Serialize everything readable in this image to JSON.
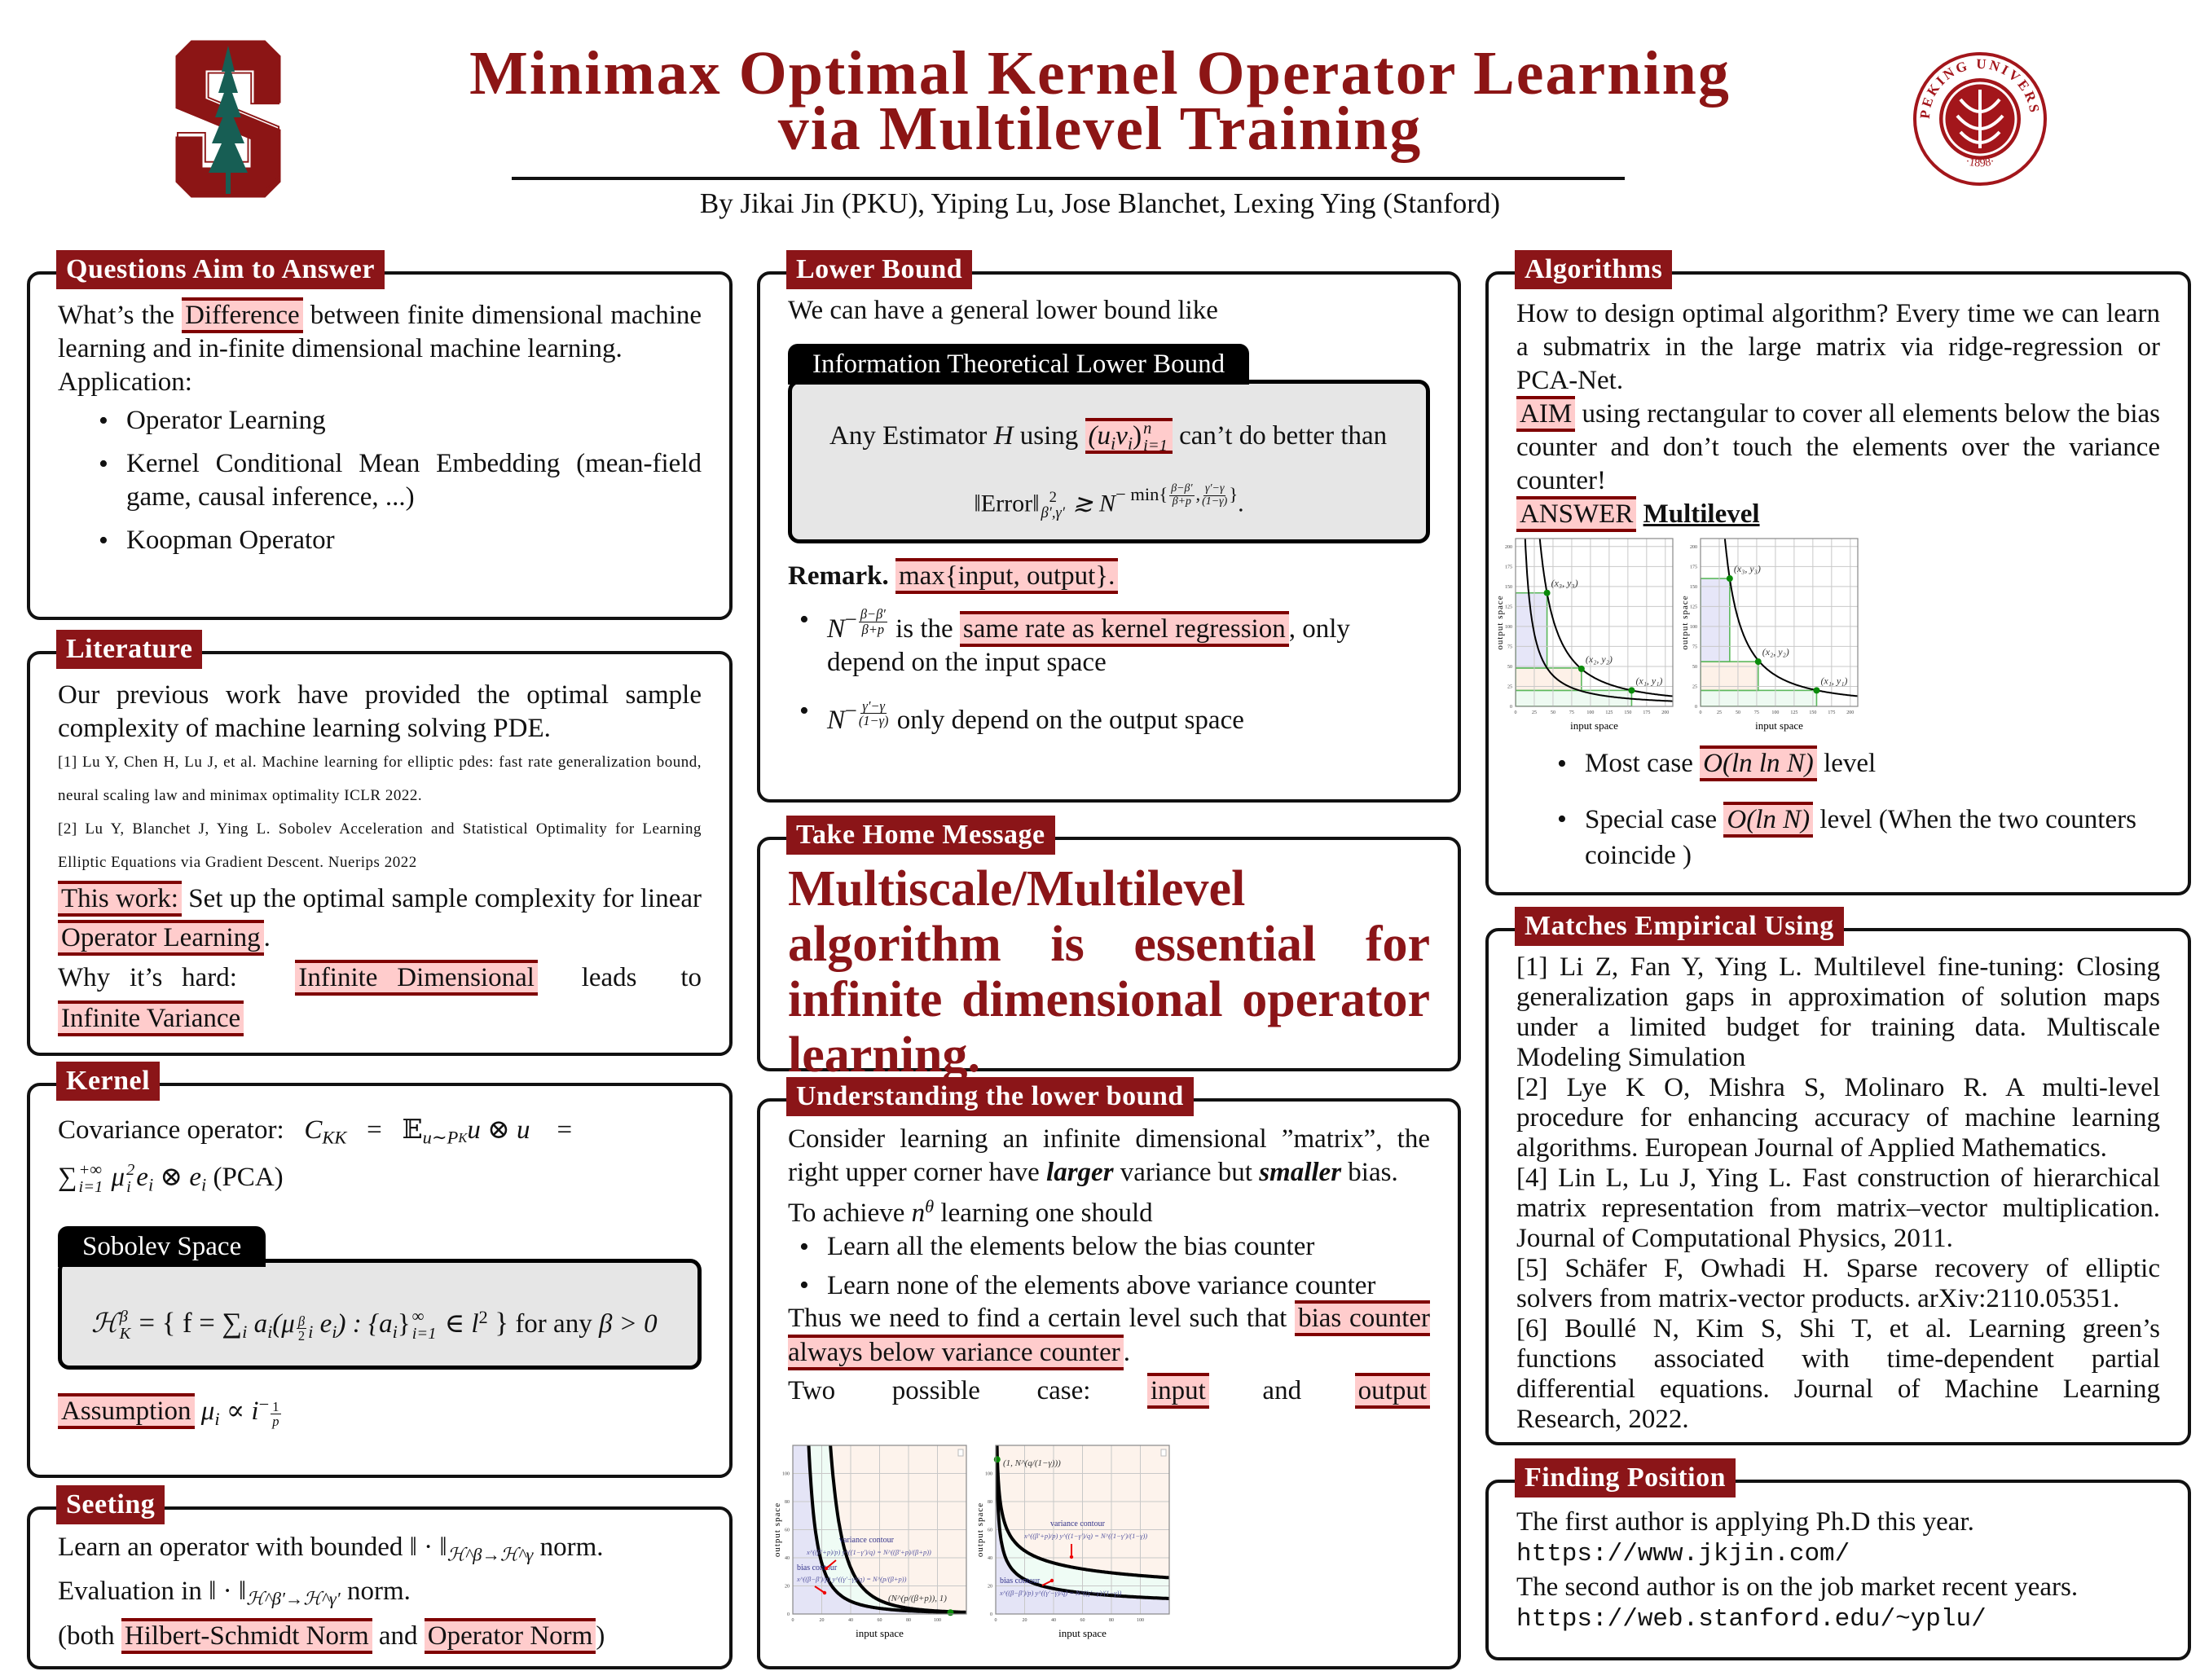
{
  "header": {
    "title_line1": "Minimax Optimal Kernel Operator Learning",
    "title_line2": "via Multilevel Training",
    "authors": "By Jikai Jin (PKU), Yiping Lu, Jose Blanchet, Lexing Ying (Stanford)",
    "left_logo": "Stanford S",
    "seal_text": "PEKING UNIVERSITY",
    "seal_year": "·1898·"
  },
  "questions": {
    "title": "Questions Aim to Answer",
    "p1_a": "What’s the ",
    "p1_hl": "Difference",
    "p1_b": " between finite dimensional machine learning and in-finite dimensional machine learning.",
    "application": "Application:",
    "items": [
      "Operator Learning",
      "Kernel Conditional Mean Embedding (mean-field game, causal inference, ...)",
      "Koopman Operator"
    ]
  },
  "literature": {
    "title": "Literature",
    "p1": "Our previous work have provided the optimal sample complexity of machine learning solving PDE.",
    "ref1": "[1] Lu Y, Chen H, Lu J, et al.  Machine learning for elliptic pdes: fast rate generalization bound, neural scaling law and minimax optimality ICLR 2022.",
    "ref2": "[2] Lu Y, Blanchet J, Ying L. Sobolev Acceleration and Statistical Optimality for Learning Elliptic Equations via Gradient Descent. Nuerips 2022",
    "this_work": "This work:",
    "this_work_text": " Set up the optimal sample complexity for linear ",
    "op_learning": "Operator Learning",
    "dot": ".",
    "why": "Why it’s hard: ",
    "inf_dim": "Infinite Dimensional",
    "leads": " leads to ",
    "inf_var": "Infinite Variance"
  },
  "kernel": {
    "title": "Kernel",
    "cov_label": "Covariance operator: ",
    "C": "C",
    "KK": "KK",
    "eq": " = ",
    "E": "𝔼",
    "E_sub": "u∼P",
    "E_subsub": "K",
    "uu": "u ⊗ u",
    "eq2": " = ",
    "sum": "∑",
    "sum_sub": "i=1",
    "sum_sup": "+∞",
    "mu": "μ",
    "mu_sub": "i",
    "mu_sup": "2",
    "ee": "e",
    "ee_sub": "i",
    "otimes": " ⊗ ",
    "e2": "e",
    "e2_sub": "i",
    "pca": " (PCA)",
    "sobolev_title": "Sobolev Space",
    "H": "ℋ",
    "H_sup": "β",
    "H_sub": "K",
    "set_a": " = { f = ∑",
    "set_i": "i",
    "set_b": " a",
    "set_ai": "i",
    "set_c": "(μ",
    "set_mui": "i",
    "set_beta": "β",
    "set_two": "2",
    "set_d": " e",
    "set_ei": "i",
    "set_e": ") : {a",
    "set_ai2": "i",
    "set_f": "}",
    "set_inf": "∞",
    "set_i1": "i=1",
    "set_g": " ∈ l",
    "set_l2": "2",
    "set_h": " }",
    "for_any": " for any ",
    "beta_gt": "β > 0",
    "assumption": "Assumption",
    "assumption_math": " μ",
    "assumption_i": "i",
    "assumption_prop": " ∝ i",
    "assumption_exp": "−",
    "assumption_num": "1",
    "assumption_den": "p"
  },
  "seeting": {
    "title": "Seeting",
    "l1_a": "Learn an operator with bounded ‖ · ‖",
    "l1_sub": "ℋ^β→ℋ^γ",
    "l1_b": " norm.",
    "l2_a": "Evaluation in ‖ · ‖",
    "l2_sub": "ℋ^β′→ℋ^γ′",
    "l2_b": " norm.",
    "l3_a": "(both ",
    "hs": "Hilbert-Schmidt Norm",
    "and": " and ",
    "op": "Operator Norm",
    "close": ")"
  },
  "lower_bound": {
    "title": "Lower Bound",
    "intro": "We can have a general lower bound like",
    "box_title": "Information Theoretical Lower Bound",
    "any": "Any Estimator ",
    "H": "H",
    "using": " using ",
    "pairs": "(u",
    "pairs_i": "i",
    ", ": ", ",
    "pairs_v": "v",
    "pairs_vi": "i",
    "pairs_close": ")",
    "pairs_sup": "n",
    "pairs_sub": "i=1",
    "cant": " can’t do better than",
    "err": "‖Error‖",
    "err_sup": "2",
    "err_sub": "β′,γ′",
    "gtrsim": " ≳ N",
    "min": "− min{",
    "f1n": "β−β′",
    "f1d": "β+p",
    "comma": ",",
    "f2n": "γ′−γ",
    "f2d": "(1−γ)",
    "minclose": "}",
    "period": ".",
    "remark": "Remark.",
    "remark_hl": "max{input, output}.",
    "b1_N": "N",
    "b1_minus": "−",
    "b1_n": "β−β′",
    "b1_d": "β+p",
    "b1_is": " is the ",
    "b1_hl": "same rate as kernel regression",
    "b1_rest": ", only depend on the input space",
    "b2_N": "N",
    "b2_minus": "−",
    "b2_n": "γ′−γ",
    "b2_d": "(1−γ)",
    "b2_rest": " only depend on the output space"
  },
  "take_home": {
    "title": "Take Home Message",
    "text": "Multiscale/Multilevel algorithm is essential for infinite dimensional operator learning."
  },
  "understanding": {
    "title": "Understanding the lower bound",
    "p1_a": "Consider learning an infinite dimensional ”matrix”, the right upper corner have ",
    "larger": "larger",
    "p1_b": " variance but ",
    "smaller": "smaller",
    "p1_c": " bias.",
    "p2_a": "To achieve ",
    "n": "n",
    "theta": "θ",
    "p2_b": " learning one should",
    "bullets": [
      "Learn all the elements below the bias counter",
      "Learn none of the elements above variance counter"
    ],
    "p3": "Thus we need to find a certain level such that ",
    "p3_hl": "bias counter always below variance counter",
    "p3_dot": ".",
    "p4": "Two possible case: ",
    "input": "input",
    "and": " and ",
    "output": "output",
    "plots": [
      {
        "xlabel": "input space",
        "ylabel": "output space",
        "xticks": [
          "0",
          "20",
          "40",
          "60",
          "80",
          "100"
        ],
        "yticks": [
          "0",
          "20",
          "40",
          "60",
          "80",
          "100"
        ],
        "variance_label": "variance contour",
        "variance_formula": "x^((β′+p)/p) y^((1−γ′)/q) = N^((β′+p)/(β+p))",
        "bias_label": "bias contour",
        "bias_formula": "x^((β−β′)/p) y^((γ′−γ)/q) = N^(p/(β+p))",
        "point_label": "(N^(p/(β+p)), 1)"
      },
      {
        "xlabel": "input space",
        "ylabel": "output space",
        "xticks": [
          "0",
          "20",
          "40",
          "60",
          "80",
          "100"
        ],
        "yticks": [
          "0",
          "20",
          "40",
          "60",
          "80",
          "100"
        ],
        "variance_label": "variance contour",
        "variance_formula": "x^((β′+p)/p) y^((1−γ′)/q) = N^((1−γ′)/(1−γ))",
        "bias_label": "bias contour",
        "bias_formula": "x^((β−β′)/p) y^((γ′−γ)/q) = N^((γ′−γ)/(1−γ))",
        "point_label": "(1, N^(q/(1−γ)))"
      }
    ]
  },
  "algorithms": {
    "title": "Algorithms",
    "p1": "How to design optimal algorithm?  Every time we can learn a submatrix in the large matrix via ridge-regression or PCA-Net.",
    "aim": "AIM",
    "aim_text": " using rectangular to cover all elements below the bias counter and don’t touch the elements over the variance counter!",
    "answer": "ANSWER",
    "multilevel": "Multilevel",
    "plots": [
      {
        "xlabel": "input space",
        "ylabel": "output space",
        "xticks": [
          "0",
          "25",
          "50",
          "75",
          "100",
          "125",
          "150",
          "175",
          "200"
        ],
        "yticks": [
          "0",
          "25",
          "50",
          "75",
          "100",
          "125",
          "150",
          "175",
          "200"
        ],
        "points": [
          "(x₃, y₃)",
          "(x₂, y₂)",
          "(x₁, y₁)"
        ]
      },
      {
        "xlabel": "input space",
        "ylabel": "output space",
        "xticks": [
          "0",
          "25",
          "50",
          "75",
          "100",
          "125",
          "150",
          "175",
          "200"
        ],
        "yticks": [
          "0",
          "25",
          "50",
          "75",
          "100",
          "125",
          "150",
          "175",
          "200"
        ],
        "points": [
          "(x₃, y₃)",
          "(x₂, y₂)",
          "(x₁, y₁)"
        ]
      }
    ],
    "b1_a": "Most case ",
    "b1_hl": "O(ln ln N)",
    "b1_b": " level",
    "b2_a": "Special case ",
    "b2_hl": "O(ln N)",
    "b2_b": " level (When the two counters coincide )"
  },
  "matches": {
    "title": "Matches Empirical Using",
    "refs": [
      "[1] Li Z, Fan Y, Ying L. Multilevel fine-tuning: Closing generalization gaps in approximation of solution maps under a limited budget for training data.  Multiscale Modeling Simulation",
      "[2] Lye K O, Mishra S, Molinaro R. A multi-level procedure for enhancing accuracy of machine learning algorithms. European Journal of Applied Mathematics.",
      "[4] Lin L, Lu J, Ying L. Fast construction of hierarchical matrix representation from matrix–vector multiplication. Journal of Computational Physics, 2011.",
      "[5] Schäfer F, Owhadi H. Sparse recovery of elliptic solvers from matrix-vector products.  arXiv:2110.05351.",
      "[6] Boullé N, Kim S, Shi T, et al.  Learning green’s functions associated with time-dependent partial differential equations.  Journal of Machine Learning Research, 2022."
    ]
  },
  "finding": {
    "title": "Finding Position",
    "l1": "The first author is applying Ph.D this year.",
    "url1": "https://www.jkjin.com/",
    "l2": "The second author is on the job market recent years.",
    "url2": "https://web.stanford.edu/~yplu/"
  },
  "colors": {
    "cardinal": "#8c1515",
    "tab": "#8b1518",
    "highlight": "#ffcccc",
    "highlight_border": "#7f0000",
    "tree": "#175e54"
  }
}
